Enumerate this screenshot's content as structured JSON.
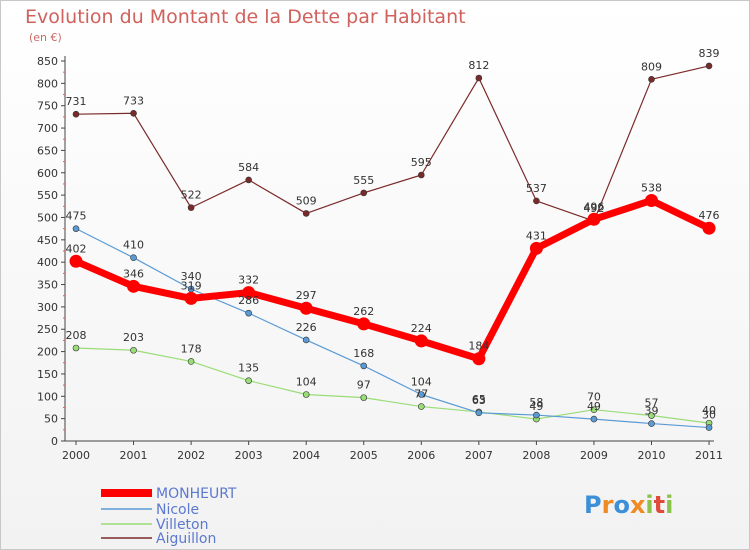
{
  "chart_data": {
    "type": "line",
    "title": "Evolution du Montant de la Dette par Habitant",
    "subtitle": "(en €)",
    "xlabel": "",
    "ylabel": "",
    "x": [
      "2000",
      "2001",
      "2002",
      "2003",
      "2004",
      "2005",
      "2006",
      "2007",
      "2008",
      "2009",
      "2010",
      "2011"
    ],
    "ylim": [
      0,
      850
    ],
    "yticks": [
      0,
      50,
      100,
      150,
      200,
      250,
      300,
      350,
      400,
      450,
      500,
      550,
      600,
      650,
      700,
      750,
      800,
      850
    ],
    "grid": false,
    "legend_position": "bottom-left",
    "series": [
      {
        "name": "MONHEURT",
        "color": "#ff0000",
        "values": [
          402,
          346,
          319,
          332,
          297,
          262,
          224,
          184,
          431,
          496,
          538,
          476
        ]
      },
      {
        "name": "Nicole",
        "color": "#5b9bd5",
        "values": [
          475,
          410,
          340,
          286,
          226,
          168,
          104,
          63,
          58,
          49,
          39,
          30
        ]
      },
      {
        "name": "Villeton",
        "color": "#99dd77",
        "values": [
          208,
          203,
          178,
          135,
          104,
          97,
          77,
          65,
          49,
          70,
          57,
          40
        ]
      },
      {
        "name": "Aiguillon",
        "color": "#7b2a2a",
        "values": [
          731,
          733,
          522,
          584,
          509,
          555,
          595,
          812,
          537,
          492,
          809,
          839
        ]
      }
    ]
  },
  "logo": {
    "letters": [
      "P",
      "r",
      "o",
      "x",
      "i",
      "t",
      "i"
    ],
    "colors": [
      "#3d8fd8",
      "#f08a24",
      "#3d8fd8",
      "#f08a24",
      "#8bc34a",
      "#e04a3a",
      "#8bc34a"
    ]
  }
}
